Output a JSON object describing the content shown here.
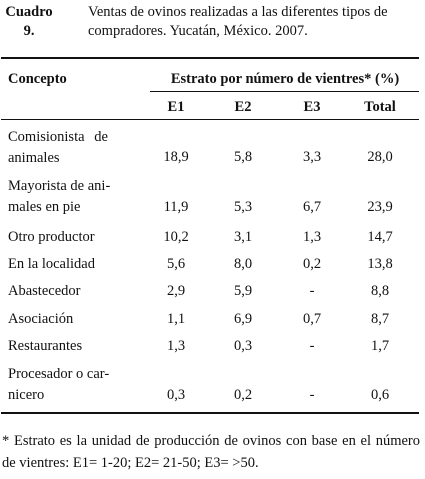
{
  "caption": {
    "number": "Cuadro 9.",
    "text": "Ventas de ovinos realizadas a las diferentes tipos de compradores. Yucatán, México. 2007."
  },
  "table": {
    "concept_header": "Concepto",
    "group_header": "Estrato por número de vientres* (%)",
    "columns": [
      "E1",
      "E2",
      "E3",
      "Total"
    ],
    "rows": [
      {
        "concept_lines": [
          "Comisionista de",
          "animales"
        ],
        "values": [
          "18,9",
          "5,8",
          "3,3",
          "28,0"
        ]
      },
      {
        "concept_lines": [
          "Mayorista de ani-",
          "males en pie"
        ],
        "values": [
          "11,9",
          "5,3",
          "6,7",
          "23,9"
        ]
      },
      {
        "concept_lines": [
          "Otro productor"
        ],
        "values": [
          "10,2",
          "3,1",
          "1,3",
          "14,7"
        ]
      },
      {
        "concept_lines": [
          "En la localidad"
        ],
        "values": [
          "5,6",
          "8,0",
          "0,2",
          "13,8"
        ]
      },
      {
        "concept_lines": [
          "Abastecedor"
        ],
        "values": [
          "2,9",
          "5,9",
          "-",
          "8,8"
        ]
      },
      {
        "concept_lines": [
          "Asociación"
        ],
        "values": [
          "1,1",
          "6,9",
          "0,7",
          "8,7"
        ]
      },
      {
        "concept_lines": [
          "Restaurantes"
        ],
        "values": [
          "1,3",
          "0,3",
          "-",
          "1,7"
        ]
      },
      {
        "concept_lines": [
          "Procesador o car-",
          "nicero"
        ],
        "values": [
          "0,3",
          "0,2",
          "-",
          "0,6"
        ]
      }
    ]
  },
  "footnote": "* Estrato es la unidad de producción de ovinos con base en el número de vientres: E1= 1-20; E2= 21-50; E3= >50."
}
